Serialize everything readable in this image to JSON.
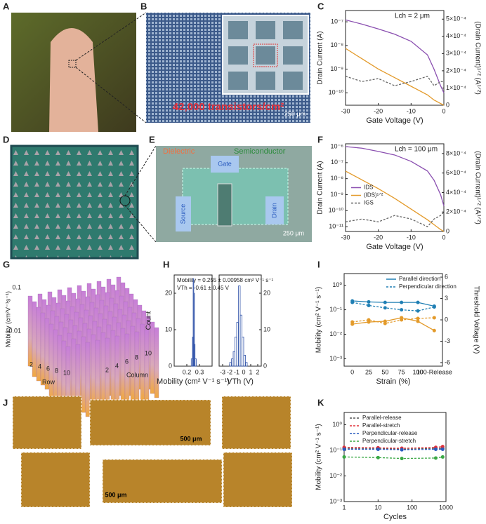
{
  "panels": [
    "A",
    "B",
    "C",
    "D",
    "E",
    "F",
    "G",
    "H",
    "I",
    "J",
    "K"
  ],
  "B": {
    "overlay": "42,000 transistors/cm²",
    "scale": "250 μm"
  },
  "E": {
    "dielectric": "Dielectric",
    "semiconductor": "Semiconductor",
    "gate": "Gate",
    "source": "Source",
    "drain": "Drain",
    "scale": "250 μm"
  },
  "G": {
    "zlabel": "Mobility (cm²V⁻¹s⁻¹)",
    "zticks": [
      "0.1",
      "0.01"
    ],
    "row": "Row",
    "column": "Column",
    "rowticks": [
      "2",
      "4",
      "6",
      "8",
      "10"
    ],
    "colticks": [
      "2",
      "4",
      "6",
      "8",
      "10"
    ]
  },
  "J": {
    "scale1": "500 μm",
    "scale2": "500 μm"
  },
  "chart_data": [
    {
      "type": "line",
      "annotations": [
        "Lch = 2 μm"
      ],
      "xlabel": "Gate Voltage (V)",
      "ylabel": "Drain Current (A)",
      "y2label": "(Drain Current)¹ᐟ² (A¹ᐟ²)",
      "log_y": true,
      "x": [
        -30,
        -25,
        -20,
        -15,
        -10,
        -5,
        -3,
        -1,
        0
      ],
      "xlim": [
        -30,
        0
      ],
      "xticks": [
        -30,
        -20,
        -10,
        0
      ],
      "ylim": [
        3e-11,
        3e-07
      ],
      "yticks": [
        {
          "value": 1e-10,
          "label": "10⁻¹⁰"
        },
        {
          "value": 1e-09,
          "label": "10⁻⁹"
        },
        {
          "value": 1e-08,
          "label": "10⁻⁸"
        },
        {
          "value": 1e-07,
          "label": "10⁻⁷"
        }
      ],
      "y2lim": [
        0,
        0.00055
      ],
      "y2ticks": [
        0,
        {
          "value": 0.0001,
          "label": "1×10⁻⁴"
        },
        {
          "value": 0.0002,
          "label": "2×10⁻⁴"
        },
        {
          "value": 0.0003,
          "label": "3×10⁻⁴"
        },
        {
          "value": 0.0004,
          "label": "4×10⁻⁴"
        },
        {
          "value": 0.0005,
          "label": "5×10⁻⁴"
        }
      ],
      "series": [
        {
          "color": "#8a4fb0",
          "values": [
            1.2e-07,
            8e-08,
            5e-08,
            3e-08,
            1.5e-08,
            4e-09,
            1e-09,
            2e-10,
            1e-10
          ]
        },
        {
          "color": "#e39a2a",
          "axis": "y2",
          "values": [
            0.00033,
            0.00027,
            0.00021,
            0.00016,
            0.00011,
            6e-05,
            3e-05,
            1e-05,
            0
          ]
        },
        {
          "color": "#666666",
          "dash": true,
          "values": [
            5e-10,
            3e-10,
            4e-10,
            2e-10,
            3e-10,
            5e-10,
            2e-10,
            3e-10,
            3e-10
          ]
        }
      ]
    },
    {
      "type": "line",
      "annotations": [
        "Lch = 100 μm"
      ],
      "xlabel": "Gate Voltage (V)",
      "ylabel": "Drain Current (A)",
      "y2label": "(Drain Current)¹ᐟ² (A¹ᐟ²)",
      "log_y": true,
      "legend": "center left",
      "x": [
        -30,
        -25,
        -20,
        -15,
        -10,
        -5,
        -3,
        -1,
        0
      ],
      "xlim": [
        -30,
        0
      ],
      "xticks": [
        -30,
        -20,
        -10,
        0
      ],
      "ylim": [
        5e-12,
        1.5e-06
      ],
      "yticks": [
        {
          "value": 1e-11,
          "label": "10⁻¹¹"
        },
        {
          "value": 1e-10,
          "label": "10⁻¹⁰"
        },
        {
          "value": 1e-09,
          "label": "10⁻⁹"
        },
        {
          "value": 1e-08,
          "label": "10⁻⁸"
        },
        {
          "value": 1e-07,
          "label": "10⁻⁷"
        },
        {
          "value": 1e-06,
          "label": "10⁻⁶"
        }
      ],
      "y2lim": [
        0,
        0.0009
      ],
      "y2ticks": [
        0,
        {
          "value": 0.0002,
          "label": "2×10⁻⁴"
        },
        {
          "value": 0.0004,
          "label": "4×10⁻⁴"
        },
        {
          "value": 0.0006,
          "label": "6×10⁻⁴"
        },
        {
          "value": 0.0008,
          "label": "8×10⁻⁴"
        }
      ],
      "series": [
        {
          "name": "IDS",
          "color": "#8a4fb0",
          "values": [
            1e-06,
            8e-07,
            5e-07,
            3e-07,
            1.2e-07,
            3e-08,
            8e-09,
            1e-09,
            2e-10
          ]
        },
        {
          "name": "(IDS)¹ᐟ²",
          "color": "#e39a2a",
          "axis": "y2",
          "values": [
            0.00062,
            0.00053,
            0.00044,
            0.00034,
            0.00023,
            0.00012,
            7e-05,
            2e-05,
            0
          ]
        },
        {
          "name": "IGS",
          "color": "#666666",
          "dash": true,
          "values": [
            2e-11,
            3e-11,
            2e-11,
            5e-11,
            3e-11,
            1e-11,
            3e-11,
            5e-11,
            8e-11
          ]
        }
      ]
    },
    {
      "type": "histogram",
      "annotations": [
        "Mobility = 0.255 ± 0.00958 cm² V⁻¹ s⁻¹",
        "VTh = -0.61 ± 0.45 V"
      ],
      "xlabel": "Mobility (cm² V⁻¹ s⁻¹)",
      "ylabel": "Count",
      "color": "#3355aa",
      "bins": [
        0.235,
        0.245,
        0.25,
        0.255,
        0.26,
        0.265,
        0.275
      ],
      "counts": [
        2,
        8,
        24,
        20,
        6,
        2
      ],
      "xlim": [
        0.1,
        0.4
      ],
      "xticks": [
        0.2,
        0.3
      ],
      "ylim": [
        0,
        25
      ],
      "yticks": [
        0,
        10,
        20
      ]
    },
    {
      "type": "histogram",
      "xlabel": "VTh (V)",
      "color": "#3355aa",
      "axis": "y2",
      "bins": [
        -2,
        -1.75,
        -1.5,
        -1.25,
        -1,
        -0.75,
        -0.5,
        -0.25,
        0,
        0.25,
        0.5
      ],
      "counts": [
        1,
        2,
        4,
        8,
        12,
        22,
        14,
        8,
        3,
        1
      ],
      "xlim": [
        -3.5,
        2.5
      ],
      "xticks": [
        -3,
        -2,
        -1,
        0,
        1,
        2
      ],
      "y2lim": [
        0,
        25
      ],
      "y2ticks": [
        0,
        10,
        20
      ]
    },
    {
      "type": "line",
      "markers": true,
      "xlabel": "Strain (%)",
      "ylabel": "Mobility (cm² V⁻¹ s⁻¹)",
      "y2label": "Threshold Voltage (V)",
      "log_y": true,
      "legend": "upper right",
      "categories": [
        "0",
        "25",
        "50",
        "75",
        "100",
        "100-Release"
      ],
      "ylim": [
        0.0005,
        3
      ],
      "yticks": [
        {
          "value": 0.001,
          "label": "10⁻³"
        },
        {
          "value": 0.01,
          "label": "10⁻²"
        },
        {
          "value": 0.1,
          "label": "10⁻¹"
        },
        {
          "value": 1,
          "label": "10⁰"
        }
      ],
      "y2lim": [
        -6.5,
        6.5
      ],
      "y2ticks": [
        -6,
        -3,
        0,
        3,
        6
      ],
      "series": [
        {
          "name": "Parallel direction",
          "color": "#1f7fb4",
          "values": [
            0.23,
            0.21,
            0.2,
            0.2,
            0.2,
            0.14
          ]
        },
        {
          "name": "Perpendicular direction",
          "color": "#1f7fb4",
          "dash": true,
          "values": [
            0.2,
            0.15,
            0.12,
            0.1,
            0.09,
            0.13
          ]
        },
        {
          "color": "#e39a2a",
          "axis": "y2",
          "values": [
            -0.6,
            -0.3,
            -0.2,
            0.3,
            -0.2,
            -1.5
          ]
        },
        {
          "color": "#e39a2a",
          "axis": "y2",
          "dash": true,
          "values": [
            -0.3,
            0,
            -0.5,
            0,
            0.2,
            0.3
          ]
        }
      ]
    },
    {
      "type": "line",
      "markers": true,
      "xlabel": "Cycles",
      "ylabel": "Mobility (cm² V⁻¹ s⁻¹)",
      "log_x": true,
      "log_y": true,
      "legend": "upper left",
      "x": [
        1,
        10,
        50,
        500,
        800
      ],
      "xlim": [
        1,
        1000
      ],
      "xticks": [
        1,
        10,
        100,
        1000
      ],
      "ylim": [
        0.001,
        3
      ],
      "yticks": [
        {
          "value": 0.001,
          "label": "10⁻³"
        },
        {
          "value": 0.01,
          "label": "10⁻²"
        },
        {
          "value": 0.1,
          "label": "10⁻¹"
        },
        {
          "value": 1,
          "label": "10⁰"
        }
      ],
      "series": [
        {
          "name": "Parallel-release",
          "color": "#555555",
          "dash": true,
          "values": [
            0.12,
            0.12,
            0.11,
            0.12,
            0.12
          ]
        },
        {
          "name": "Parallel-stretch",
          "color": "#e0303a",
          "dash": true,
          "values": [
            0.13,
            0.125,
            0.12,
            0.13,
            0.14
          ]
        },
        {
          "name": "Perpendicular-release",
          "color": "#2a5bbf",
          "dash": true,
          "values": [
            0.11,
            0.11,
            0.105,
            0.11,
            0.11
          ]
        },
        {
          "name": "Perpendicular-stretch",
          "color": "#3aa845",
          "dash": true,
          "values": [
            0.055,
            0.052,
            0.048,
            0.05,
            0.055
          ]
        }
      ]
    }
  ]
}
